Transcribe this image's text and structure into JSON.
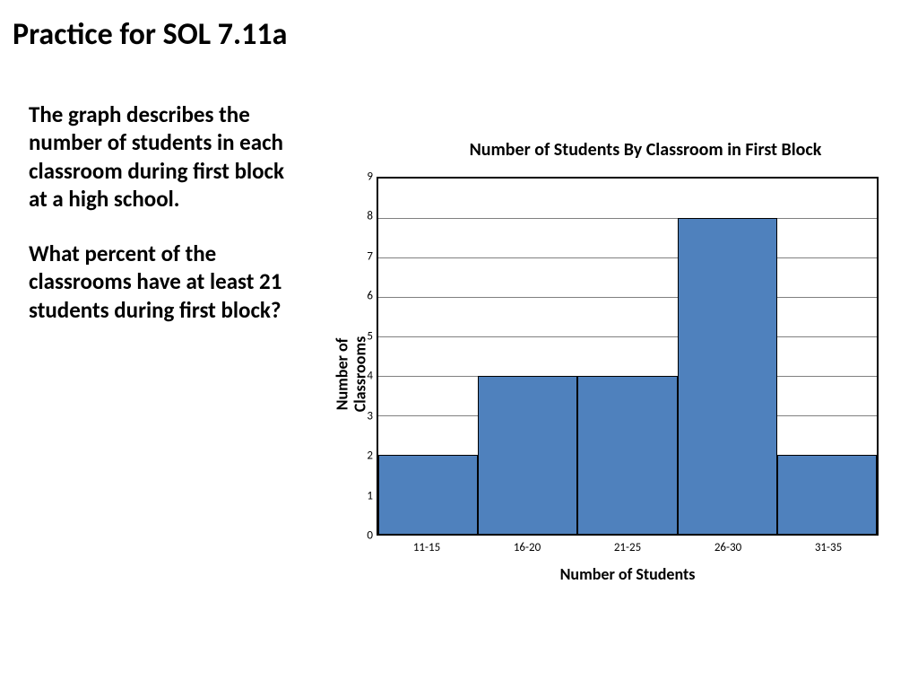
{
  "title": "Practice for SOL 7.11a",
  "prompt": {
    "p1": "The graph describes the number of students in each classroom during first block at a high school.",
    "p2": "What percent of the classrooms have at least 21 students during first block?"
  },
  "chart": {
    "type": "histogram",
    "title": "Number of Students By Classroom in First Block",
    "title_fontsize": 20,
    "x_label": "Number of Students",
    "y_label": "Number of\nClassrooms",
    "label_fontsize": 18,
    "tick_fontsize": 13,
    "categories": [
      "11-15",
      "16-20",
      "21-25",
      "26-30",
      "31-35"
    ],
    "values": [
      2,
      4,
      4,
      8,
      2
    ],
    "ylim": [
      0,
      9
    ],
    "ytick_step": 1,
    "y_ticks": [
      0,
      1,
      2,
      3,
      4,
      5,
      6,
      7,
      8,
      9
    ],
    "bar_color": "#4f81bd",
    "bar_border_color": "#000000",
    "plot_border_color": "#000000",
    "grid_color": "#808080",
    "background_color": "#ffffff",
    "bar_width": 1.0
  }
}
